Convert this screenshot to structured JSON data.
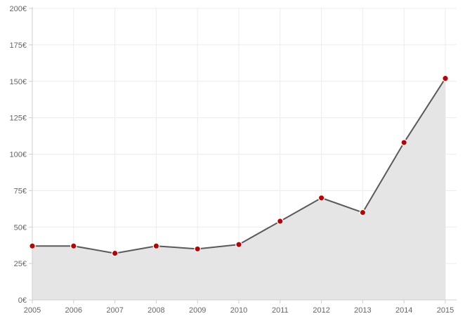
{
  "chart_data": {
    "type": "area",
    "x": [
      "2005",
      "2006",
      "2007",
      "2008",
      "2009",
      "2010",
      "2011",
      "2012",
      "2013",
      "2014",
      "2015"
    ],
    "series": [
      {
        "values": [
          37,
          37,
          32,
          37,
          35,
          38,
          54,
          70,
          60,
          108,
          152
        ]
      }
    ],
    "ylim": [
      0,
      200
    ],
    "yticks": [
      0,
      25,
      50,
      75,
      100,
      125,
      150,
      175,
      200
    ],
    "ytick_labels": [
      "0€",
      "25€",
      "50€",
      "75€",
      "100€",
      "125€",
      "150€",
      "175€",
      "200€"
    ],
    "grid": true,
    "legend": "none",
    "colors": {
      "line": "#5a5a5a",
      "fill": "#e5e5e5",
      "marker": "#c00000",
      "marker_stroke": "#ffffff",
      "grid": "#ececec",
      "axis": "#cfcfcf"
    }
  }
}
